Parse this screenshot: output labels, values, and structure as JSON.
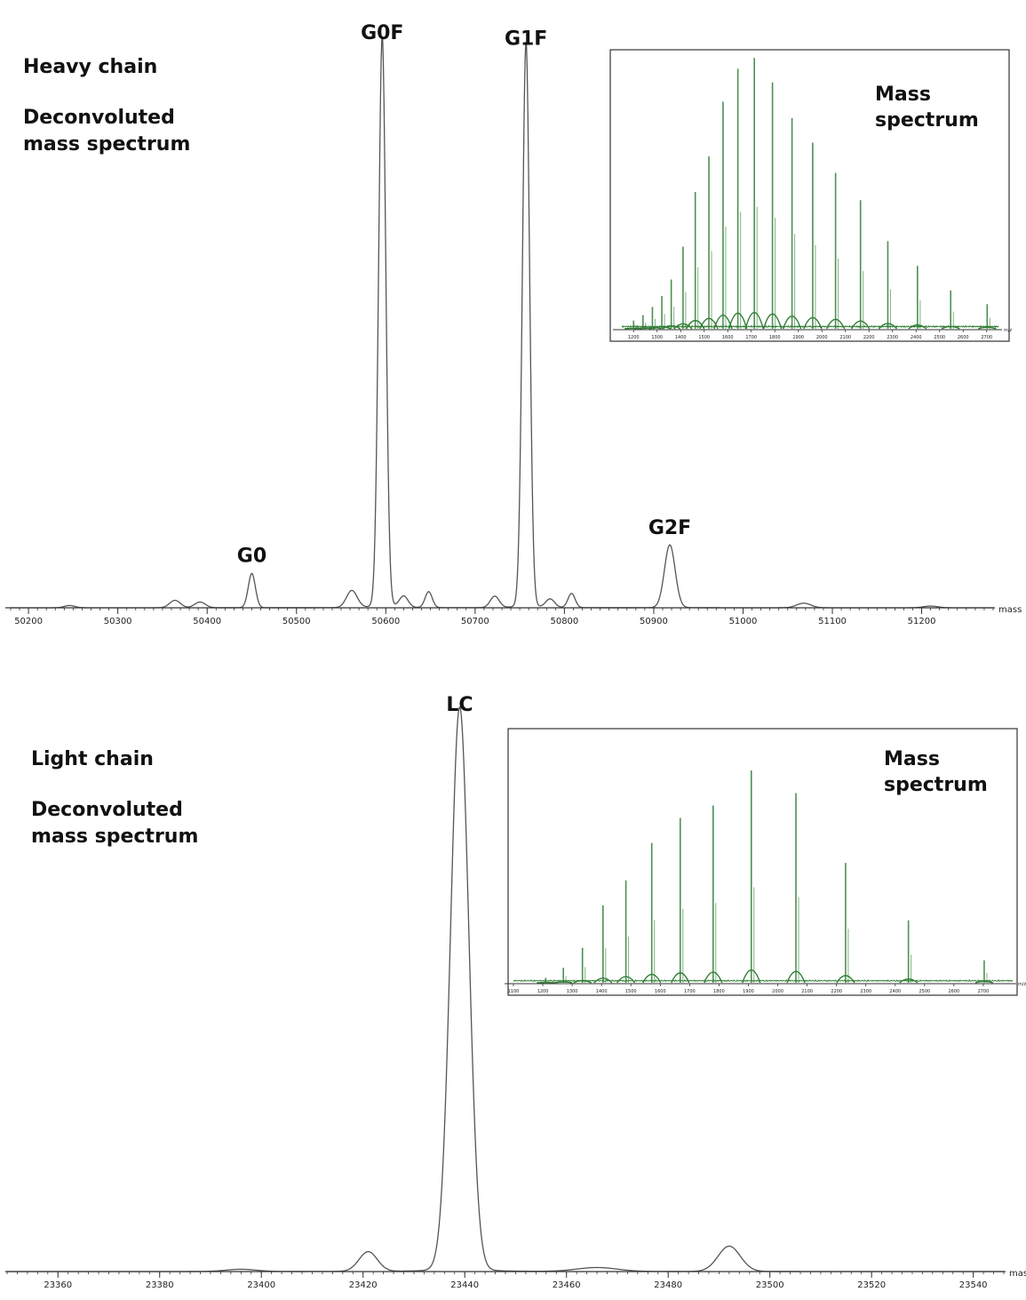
{
  "chart_data": [
    {
      "type": "line",
      "panel": "heavy-chain",
      "annotations": [
        "Heavy chain",
        "Deconvoluted",
        "mass spectrum"
      ],
      "xlabel": "mass",
      "xlim": [
        50180,
        51280
      ],
      "ylim": [
        0,
        100
      ],
      "x_ticks": [
        50200,
        50300,
        50400,
        50500,
        50600,
        50700,
        50800,
        50900,
        51000,
        51100,
        51200
      ],
      "peaks": [
        {
          "x": 50246,
          "y": 0.4,
          "w": 6
        },
        {
          "x": 50364,
          "y": 1.3,
          "w": 6
        },
        {
          "x": 50392,
          "y": 1.0,
          "w": 6
        },
        {
          "x": 50450,
          "y": 6.0,
          "w": 4,
          "label": "G0"
        },
        {
          "x": 50562,
          "y": 3.0,
          "w": 6
        },
        {
          "x": 50596,
          "y": 100,
          "w": 4,
          "label": "G0F"
        },
        {
          "x": 50620,
          "y": 2.0,
          "w": 5
        },
        {
          "x": 50648,
          "y": 2.8,
          "w": 4
        },
        {
          "x": 50722,
          "y": 2.0,
          "w": 5
        },
        {
          "x": 50757,
          "y": 99,
          "w": 4,
          "label": "G1F"
        },
        {
          "x": 50784,
          "y": 1.5,
          "w": 5
        },
        {
          "x": 50808,
          "y": 2.5,
          "w": 4
        },
        {
          "x": 50918,
          "y": 11,
          "w": 6,
          "label": "G2F"
        },
        {
          "x": 51068,
          "y": 0.8,
          "w": 8
        },
        {
          "x": 51210,
          "y": 0.3,
          "w": 8
        }
      ],
      "inset": {
        "title": [
          "Mass",
          "spectrum"
        ],
        "xlabel": "m/z",
        "xlim": [
          1150,
          2750
        ],
        "x_ticks": [
          1200,
          1300,
          1400,
          1500,
          1600,
          1700,
          1800,
          1900,
          2000,
          2100,
          2200,
          2300,
          2400,
          2500,
          2600,
          2700
        ],
        "peaks": [
          [
            1200,
            3
          ],
          [
            1240,
            5
          ],
          [
            1280,
            8
          ],
          [
            1320,
            12
          ],
          [
            1360,
            18
          ],
          [
            1410,
            30
          ],
          [
            1462,
            50
          ],
          [
            1520,
            63
          ],
          [
            1580,
            83
          ],
          [
            1643,
            95
          ],
          [
            1713,
            99
          ],
          [
            1790,
            90
          ],
          [
            1873,
            77
          ],
          [
            1961,
            68
          ],
          [
            2058,
            57
          ],
          [
            2164,
            47
          ],
          [
            2280,
            32
          ],
          [
            2406,
            23
          ],
          [
            2547,
            14
          ],
          [
            2702,
            9
          ]
        ]
      },
      "colors": {
        "trace": "#555555",
        "inset": "#2e7d32"
      }
    },
    {
      "type": "line",
      "panel": "light-chain",
      "annotations": [
        "Light chain",
        "Deconvoluted",
        "mass spectrum"
      ],
      "xlabel": "mas",
      "xlim": [
        23350,
        23546
      ],
      "ylim": [
        0,
        100
      ],
      "x_ticks": [
        23360,
        23380,
        23400,
        23420,
        23440,
        23460,
        23480,
        23500,
        23520,
        23540
      ],
      "peaks": [
        {
          "x": 23396,
          "y": 0.4,
          "w": 3
        },
        {
          "x": 23421,
          "y": 3.5,
          "w": 1.8
        },
        {
          "x": 23439,
          "y": 100,
          "w": 1.8,
          "label": "LC"
        },
        {
          "x": 23466,
          "y": 0.7,
          "w": 4
        },
        {
          "x": 23492,
          "y": 4.5,
          "w": 2.2
        }
      ],
      "inset": {
        "title": [
          "Mass",
          "spectrum"
        ],
        "xlabel": "m/z",
        "xlim": [
          1100,
          2800
        ],
        "x_ticks": [
          1100,
          1200,
          1300,
          1400,
          1500,
          1600,
          1700,
          1800,
          1900,
          2000,
          2100,
          2200,
          2300,
          2400,
          2500,
          2600,
          2700
        ],
        "peaks": [
          [
            1210,
            2
          ],
          [
            1270,
            6
          ],
          [
            1335,
            14
          ],
          [
            1405,
            31
          ],
          [
            1483,
            41
          ],
          [
            1571,
            56
          ],
          [
            1668,
            66
          ],
          [
            1780,
            71
          ],
          [
            1910,
            85
          ],
          [
            2062,
            76
          ],
          [
            2231,
            48
          ],
          [
            2445,
            25
          ],
          [
            2703,
            9
          ]
        ]
      },
      "colors": {
        "trace": "#555555",
        "inset": "#2e7d32"
      }
    }
  ]
}
